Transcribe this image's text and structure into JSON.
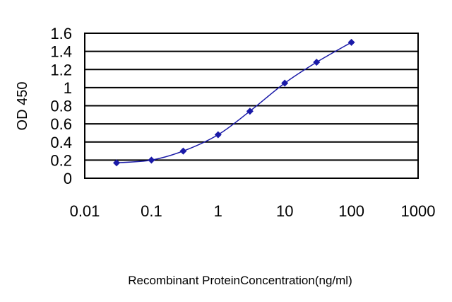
{
  "chart_data": {
    "type": "line",
    "title": "",
    "xlabel": "Recombinant ProteinConcentration(ng/ml)",
    "ylabel": "OD 450",
    "x_scale": "log",
    "xlim": [
      0.01,
      1000
    ],
    "ylim": [
      0,
      1.6
    ],
    "x_ticks": [
      "0.01",
      "0.1",
      "1",
      "10",
      "100",
      "1000"
    ],
    "y_ticks": [
      "0",
      "0.2",
      "0.4",
      "0.6",
      "0.8",
      "1",
      "1.2",
      "1.4",
      "1.6"
    ],
    "grid": "horizontal",
    "legend": "none",
    "series": [
      {
        "x": [
          0.03,
          0.1,
          0.3,
          1,
          3,
          10,
          30,
          100
        ],
        "y": [
          0.17,
          0.2,
          0.3,
          0.48,
          0.74,
          1.05,
          1.28,
          1.5
        ],
        "color": "#1a1aa8",
        "marker": "diamond"
      }
    ]
  }
}
